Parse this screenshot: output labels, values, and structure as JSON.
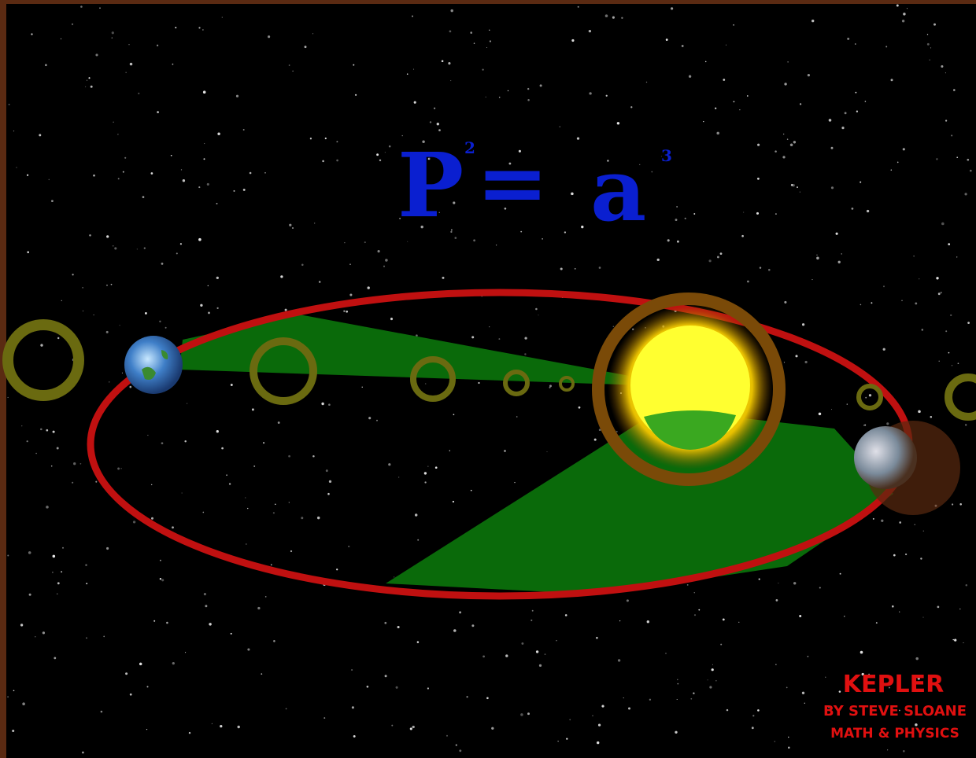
{
  "formula": {
    "left": "P",
    "left_exponent": "2",
    "operator": "=",
    "right": "a",
    "right_exponent": "3"
  },
  "credit": {
    "title": "KEPLER",
    "author": "BY STEVE SLOANE",
    "subject": "MATH & PHYSICS"
  }
}
